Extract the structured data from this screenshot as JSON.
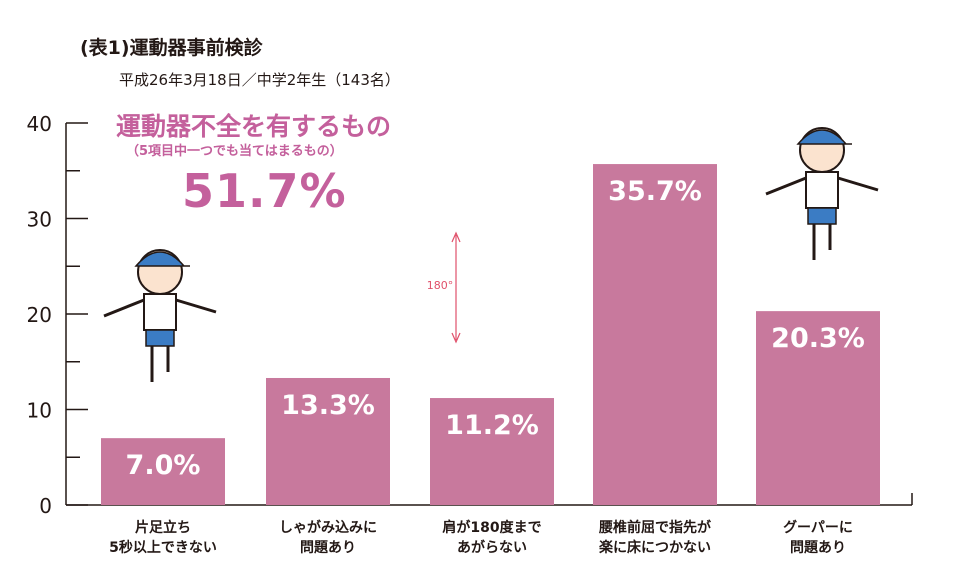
{
  "title": "(表1)運動器事前検診",
  "subtitle": "平成26年3月18日／中学2年生（143名）",
  "callout": {
    "main": "運動器不全を有するもの",
    "sub": "（5項目中一つでも当てはまるもの）",
    "value": "51.7%"
  },
  "illustration_note": "180°",
  "colors": {
    "bar": "#c8799d",
    "accent": "#c4609c",
    "axis": "#231815"
  },
  "chart_data": {
    "type": "bar",
    "title": "(表1)運動器事前検診",
    "subtitle": "平成26年3月18日／中学2年生（143名）",
    "xlabel": "",
    "ylabel": "",
    "ylim": [
      0,
      40
    ],
    "yticks": [
      0,
      10,
      20,
      30,
      40
    ],
    "grid": false,
    "categories": [
      [
        "片足立ち",
        "5秒以上できない"
      ],
      [
        "しゃがみ込みに",
        "問題あり"
      ],
      [
        "肩が180度まで",
        "あがらない"
      ],
      [
        "腰椎前屈で指先が",
        "楽に床につかない"
      ],
      [
        "グーパーに",
        "問題あり"
      ]
    ],
    "values": [
      7.0,
      13.3,
      11.2,
      35.7,
      20.3
    ],
    "data_labels": [
      "7.0%",
      "13.3%",
      "11.2%",
      "35.7%",
      "20.3%"
    ]
  }
}
